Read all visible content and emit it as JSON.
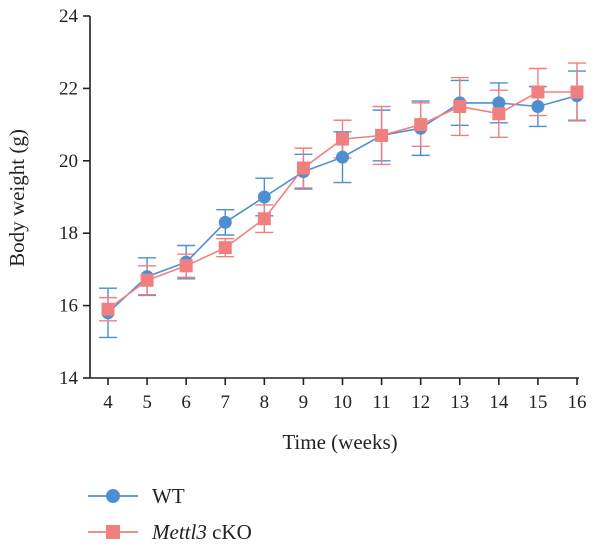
{
  "chart_data": {
    "type": "line",
    "title": "",
    "xlabel": "Time (weeks)",
    "ylabel": "Body weight (g)",
    "xlim": [
      4,
      16
    ],
    "ylim": [
      14,
      24
    ],
    "x": [
      4,
      5,
      6,
      7,
      8,
      9,
      10,
      11,
      12,
      13,
      14,
      15,
      16
    ],
    "xticks": [
      "4",
      "5",
      "6",
      "7",
      "8",
      "9",
      "10",
      "11",
      "12",
      "13",
      "14",
      "15",
      "16"
    ],
    "yticks": [
      "14",
      "16",
      "18",
      "20",
      "22",
      "24"
    ],
    "grid": false,
    "legend_placement": "bottom-left",
    "series": [
      {
        "name": "WT",
        "name_italic": "",
        "name_rest": "WT",
        "color": "#4d8fd1",
        "marker": "circle",
        "values": [
          15.8,
          16.8,
          17.2,
          18.3,
          19.0,
          19.7,
          20.1,
          20.7,
          20.9,
          21.6,
          21.6,
          21.5,
          21.8
        ],
        "errors": [
          0.68,
          0.52,
          0.46,
          0.35,
          0.52,
          0.48,
          0.7,
          0.7,
          0.75,
          0.62,
          0.55,
          0.55,
          0.68
        ]
      },
      {
        "name": "Mettl3 cKO",
        "name_italic": "Mettl3",
        "name_rest": " cKO",
        "color": "#f08080",
        "marker": "square",
        "values": [
          15.9,
          16.7,
          17.1,
          17.6,
          18.4,
          19.8,
          20.6,
          20.7,
          21.0,
          21.5,
          21.3,
          21.9,
          21.9
        ],
        "errors": [
          0.32,
          0.4,
          0.32,
          0.25,
          0.38,
          0.55,
          0.52,
          0.8,
          0.6,
          0.8,
          0.65,
          0.65,
          0.8
        ]
      }
    ]
  }
}
